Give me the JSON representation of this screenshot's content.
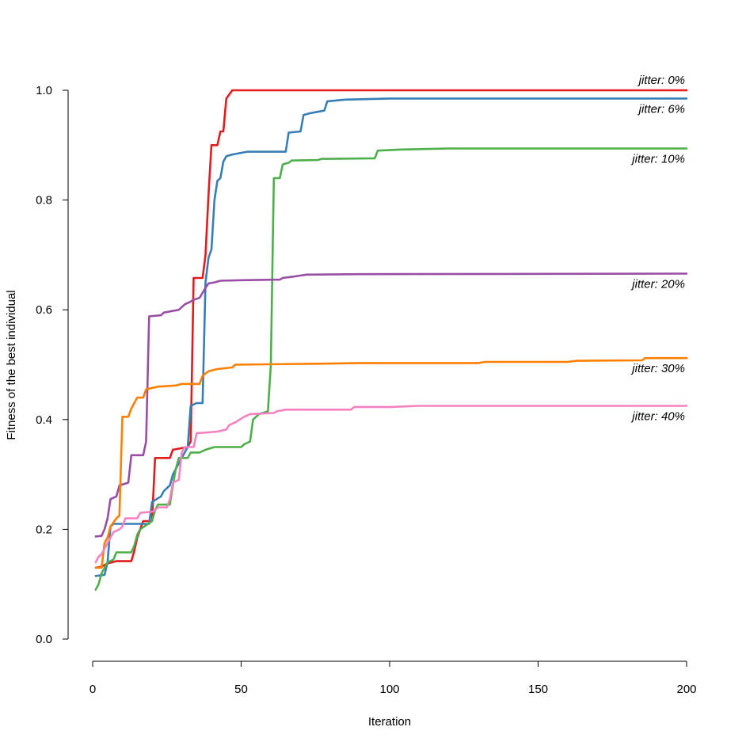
{
  "chart_data": {
    "type": "line",
    "title": "",
    "xlabel": "Iteration",
    "ylabel": "Fitness of the best individual",
    "xlim": [
      0,
      200
    ],
    "ylim": [
      0,
      1
    ],
    "x_ticks": [
      0,
      50,
      100,
      150,
      200
    ],
    "y_ticks": [
      0.0,
      0.2,
      0.4,
      0.6,
      0.8,
      1.0
    ],
    "x_tick_labels": [
      "0",
      "50",
      "100",
      "150",
      "200"
    ],
    "y_tick_labels": [
      "0.0",
      "0.2",
      "0.4",
      "0.6",
      "0.8",
      "1.0"
    ],
    "grid": false,
    "legend": "none",
    "series": [
      {
        "name": "jitter: 0%",
        "color": "#e41a1c",
        "points": [
          [
            1,
            0.13
          ],
          [
            3,
            0.132
          ],
          [
            5,
            0.138
          ],
          [
            8,
            0.142
          ],
          [
            13,
            0.142
          ],
          [
            14,
            0.16
          ],
          [
            15,
            0.185
          ],
          [
            16,
            0.2
          ],
          [
            17,
            0.215
          ],
          [
            20,
            0.215
          ],
          [
            21,
            0.33
          ],
          [
            26,
            0.33
          ],
          [
            27,
            0.345
          ],
          [
            32,
            0.35
          ],
          [
            33,
            0.36
          ],
          [
            34,
            0.658
          ],
          [
            37,
            0.658
          ],
          [
            38,
            0.7
          ],
          [
            39,
            0.81
          ],
          [
            40,
            0.9
          ],
          [
            42,
            0.9
          ],
          [
            43,
            0.925
          ],
          [
            44,
            0.925
          ],
          [
            45,
            0.985
          ],
          [
            47,
            1.0
          ],
          [
            200,
            1.0
          ]
        ]
      },
      {
        "name": "jitter: 6%",
        "color": "#377eb8",
        "points": [
          [
            1,
            0.115
          ],
          [
            4,
            0.117
          ],
          [
            5,
            0.14
          ],
          [
            6,
            0.205
          ],
          [
            7,
            0.21
          ],
          [
            19,
            0.21
          ],
          [
            20,
            0.25
          ],
          [
            23,
            0.26
          ],
          [
            24,
            0.27
          ],
          [
            26,
            0.28
          ],
          [
            27,
            0.3
          ],
          [
            30,
            0.33
          ],
          [
            32,
            0.35
          ],
          [
            33,
            0.425
          ],
          [
            35,
            0.43
          ],
          [
            37,
            0.43
          ],
          [
            38,
            0.65
          ],
          [
            39,
            0.695
          ],
          [
            40,
            0.71
          ],
          [
            41,
            0.8
          ],
          [
            42,
            0.835
          ],
          [
            43,
            0.84
          ],
          [
            44,
            0.87
          ],
          [
            45,
            0.88
          ],
          [
            47,
            0.883
          ],
          [
            50,
            0.886
          ],
          [
            52,
            0.888
          ],
          [
            65,
            0.888
          ],
          [
            66,
            0.923
          ],
          [
            70,
            0.925
          ],
          [
            71,
            0.955
          ],
          [
            73,
            0.958
          ],
          [
            75,
            0.96
          ],
          [
            78,
            0.963
          ],
          [
            79,
            0.98
          ],
          [
            85,
            0.983
          ],
          [
            100,
            0.985
          ],
          [
            200,
            0.985
          ]
        ]
      },
      {
        "name": "jitter: 10%",
        "color": "#4daf4a",
        "points": [
          [
            1,
            0.09
          ],
          [
            2,
            0.1
          ],
          [
            3,
            0.12
          ],
          [
            5,
            0.14
          ],
          [
            7,
            0.145
          ],
          [
            8,
            0.158
          ],
          [
            13,
            0.158
          ],
          [
            14,
            0.17
          ],
          [
            15,
            0.19
          ],
          [
            16,
            0.2
          ],
          [
            20,
            0.215
          ],
          [
            21,
            0.235
          ],
          [
            22,
            0.245
          ],
          [
            26,
            0.245
          ],
          [
            27,
            0.28
          ],
          [
            28,
            0.31
          ],
          [
            29,
            0.33
          ],
          [
            32,
            0.33
          ],
          [
            33,
            0.34
          ],
          [
            36,
            0.34
          ],
          [
            38,
            0.345
          ],
          [
            41,
            0.35
          ],
          [
            50,
            0.35
          ],
          [
            51,
            0.355
          ],
          [
            53,
            0.36
          ],
          [
            54,
            0.4
          ],
          [
            56,
            0.41
          ],
          [
            59,
            0.415
          ],
          [
            60,
            0.5
          ],
          [
            61,
            0.84
          ],
          [
            63,
            0.84
          ],
          [
            64,
            0.865
          ],
          [
            66,
            0.868
          ],
          [
            67,
            0.872
          ],
          [
            76,
            0.873
          ],
          [
            77,
            0.875
          ],
          [
            80,
            0.875
          ],
          [
            95,
            0.876
          ],
          [
            96,
            0.89
          ],
          [
            104,
            0.892
          ],
          [
            120,
            0.894
          ],
          [
            200,
            0.894
          ]
        ]
      },
      {
        "name": "jitter: 20%",
        "color": "#984ea3",
        "points": [
          [
            1,
            0.187
          ],
          [
            3,
            0.188
          ],
          [
            4,
            0.2
          ],
          [
            5,
            0.22
          ],
          [
            6,
            0.255
          ],
          [
            8,
            0.26
          ],
          [
            9,
            0.28
          ],
          [
            12,
            0.285
          ],
          [
            13,
            0.335
          ],
          [
            17,
            0.335
          ],
          [
            18,
            0.36
          ],
          [
            19,
            0.588
          ],
          [
            23,
            0.59
          ],
          [
            24,
            0.595
          ],
          [
            29,
            0.6
          ],
          [
            31,
            0.61
          ],
          [
            33,
            0.615
          ],
          [
            34,
            0.618
          ],
          [
            36,
            0.622
          ],
          [
            38,
            0.64
          ],
          [
            39,
            0.648
          ],
          [
            41,
            0.65
          ],
          [
            43,
            0.653
          ],
          [
            50,
            0.654
          ],
          [
            63,
            0.655
          ],
          [
            64,
            0.658
          ],
          [
            67,
            0.66
          ],
          [
            72,
            0.664
          ],
          [
            90,
            0.665
          ],
          [
            200,
            0.666
          ]
        ]
      },
      {
        "name": "jitter: 30%",
        "color": "#ff7f00",
        "points": [
          [
            1,
            0.13
          ],
          [
            3,
            0.13
          ],
          [
            4,
            0.175
          ],
          [
            5,
            0.185
          ],
          [
            6,
            0.205
          ],
          [
            8,
            0.22
          ],
          [
            9,
            0.225
          ],
          [
            10,
            0.405
          ],
          [
            12,
            0.405
          ],
          [
            13,
            0.42
          ],
          [
            14,
            0.43
          ],
          [
            15,
            0.44
          ],
          [
            17,
            0.44
          ],
          [
            18,
            0.455
          ],
          [
            22,
            0.46
          ],
          [
            28,
            0.462
          ],
          [
            30,
            0.465
          ],
          [
            36,
            0.465
          ],
          [
            37,
            0.48
          ],
          [
            39,
            0.488
          ],
          [
            42,
            0.492
          ],
          [
            47,
            0.495
          ],
          [
            48,
            0.5
          ],
          [
            80,
            0.502
          ],
          [
            90,
            0.503
          ],
          [
            130,
            0.503
          ],
          [
            132,
            0.505
          ],
          [
            160,
            0.505
          ],
          [
            163,
            0.507
          ],
          [
            185,
            0.508
          ],
          [
            186,
            0.512
          ],
          [
            200,
            0.512
          ]
        ]
      },
      {
        "name": "jitter: 40%",
        "color": "#f781bf",
        "points": [
          [
            1,
            0.14
          ],
          [
            2,
            0.15
          ],
          [
            3,
            0.155
          ],
          [
            4,
            0.165
          ],
          [
            5,
            0.175
          ],
          [
            6,
            0.185
          ],
          [
            7,
            0.195
          ],
          [
            9,
            0.2
          ],
          [
            10,
            0.205
          ],
          [
            11,
            0.22
          ],
          [
            15,
            0.22
          ],
          [
            16,
            0.23
          ],
          [
            20,
            0.232
          ],
          [
            21,
            0.235
          ],
          [
            22,
            0.24
          ],
          [
            25,
            0.24
          ],
          [
            26,
            0.255
          ],
          [
            27,
            0.285
          ],
          [
            29,
            0.29
          ],
          [
            30,
            0.34
          ],
          [
            31,
            0.35
          ],
          [
            34,
            0.35
          ],
          [
            35,
            0.375
          ],
          [
            42,
            0.378
          ],
          [
            45,
            0.382
          ],
          [
            46,
            0.39
          ],
          [
            48,
            0.395
          ],
          [
            51,
            0.405
          ],
          [
            53,
            0.41
          ],
          [
            61,
            0.412
          ],
          [
            62,
            0.415
          ],
          [
            65,
            0.418
          ],
          [
            87,
            0.418
          ],
          [
            88,
            0.423
          ],
          [
            100,
            0.423
          ],
          [
            110,
            0.425
          ],
          [
            200,
            0.425
          ]
        ]
      }
    ]
  }
}
